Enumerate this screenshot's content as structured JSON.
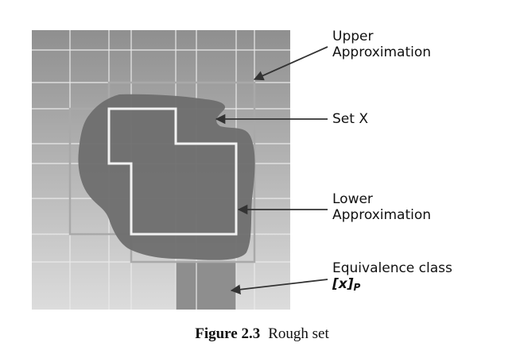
{
  "labels": {
    "upper_line1": "Upper",
    "upper_line2": "Approximation",
    "set_x": "Set X",
    "lower_line1": "Lower",
    "lower_line2": "Approximation",
    "equiv_line1": "Equivalence class",
    "equiv_symbol_main": "[x]",
    "equiv_symbol_sub": "P"
  },
  "caption": {
    "number": "Figure 2.3",
    "text": "Rough set"
  },
  "colors": {
    "grid_top": "#8f8f8f",
    "grid_bottom": "#dcdcdc",
    "grid_line": "#e9e9e9",
    "set_fill": "#6e6e6e",
    "upper_outline": "#a9a9a9",
    "lower_outline": "#f2f2f2",
    "equiv_fill": "#8e8e8e",
    "arrow": "#333333"
  }
}
